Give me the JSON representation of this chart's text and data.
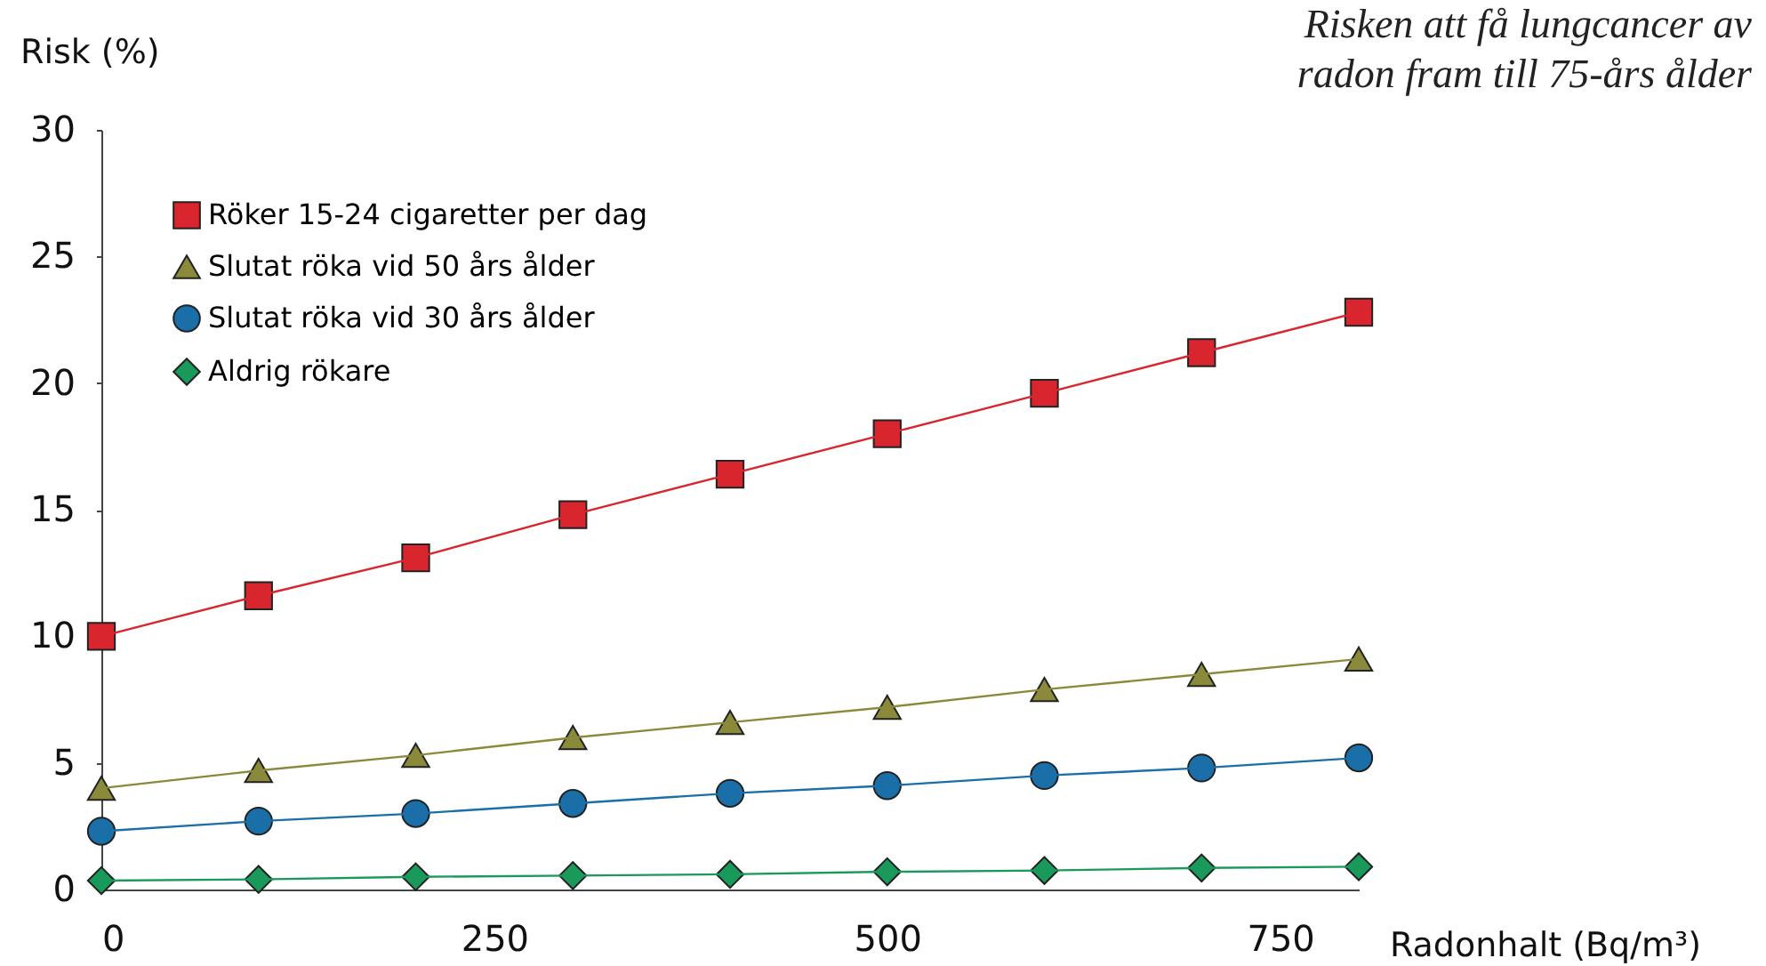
{
  "chart_data": {
    "type": "line",
    "title": "Risken att få lungcancer av radon fram till 75-års ålder",
    "xlabel": "Radonhalt  (Bq/m³)",
    "ylabel": "Risk (%)",
    "x": [
      0,
      100,
      200,
      300,
      400,
      500,
      600,
      700,
      800
    ],
    "series": [
      {
        "name": "Röker 15-24 cigaretter per dag",
        "color": "#d9252e",
        "marker": "square",
        "values": [
          10,
          11.6,
          13.1,
          14.8,
          16.4,
          18.0,
          19.6,
          21.2,
          22.8
        ]
      },
      {
        "name": "Slutat röka vid 50 års ålder",
        "color": "#8a8a3a",
        "marker": "triangle",
        "values": [
          4.0,
          4.7,
          5.3,
          6.0,
          6.6,
          7.2,
          7.9,
          8.5,
          9.1
        ]
      },
      {
        "name": "Slutat röka vid 30 års ålder",
        "color": "#1a6fa8",
        "marker": "circle",
        "values": [
          2.3,
          2.7,
          3.0,
          3.4,
          3.8,
          4.1,
          4.5,
          4.8,
          5.2
        ]
      },
      {
        "name": "Aldrig rökare",
        "color": "#1a9a5a",
        "marker": "diamond",
        "values": [
          0.35,
          0.4,
          0.5,
          0.55,
          0.6,
          0.7,
          0.75,
          0.85,
          0.9
        ]
      }
    ],
    "xlim": [
      0,
      800
    ],
    "xticks": [
      0,
      250,
      500,
      750
    ],
    "ylim": [
      0,
      30
    ],
    "yticks": [
      0,
      5,
      10,
      15,
      20,
      25,
      30
    ],
    "grid": false,
    "legend": "top left"
  }
}
